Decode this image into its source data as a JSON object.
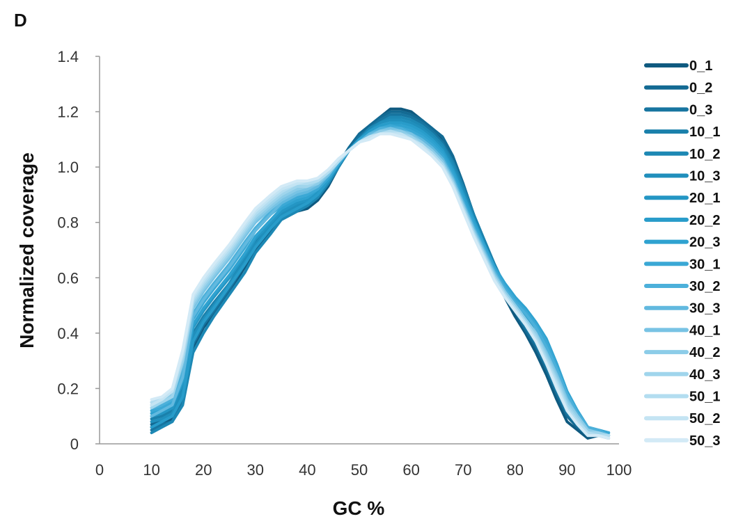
{
  "panel_label": "D",
  "chart_data": {
    "type": "line",
    "xlabel": "GC %",
    "ylabel": "Normalized coverage",
    "xlim": [
      0,
      100
    ],
    "ylim": [
      0,
      1.4
    ],
    "xticks": [
      "0",
      "10",
      "20",
      "30",
      "40",
      "50",
      "60",
      "70",
      "80",
      "90",
      "100"
    ],
    "yticks": [
      "0",
      "0.2",
      "0.4",
      "0.6",
      "0.8",
      "1.0",
      "1.2",
      "1.4"
    ],
    "legend_position": "right",
    "grid": false,
    "x": [
      10,
      12,
      14,
      16,
      18,
      20,
      22,
      25,
      28,
      30,
      33,
      35,
      38,
      40,
      42,
      44,
      46,
      48,
      50,
      52,
      54,
      56,
      58,
      60,
      62,
      64,
      66,
      68,
      70,
      72,
      74,
      76,
      78,
      80,
      82,
      84,
      86,
      88,
      90,
      92,
      94,
      96,
      98
    ],
    "series": [
      {
        "name": "0_1",
        "color": "#0f5a80",
        "values": [
          0.06,
          0.07,
          0.09,
          0.15,
          0.35,
          0.42,
          0.47,
          0.55,
          0.64,
          0.7,
          0.77,
          0.81,
          0.84,
          0.85,
          0.88,
          0.93,
          1.0,
          1.06,
          1.11,
          1.15,
          1.18,
          1.21,
          1.21,
          1.2,
          1.17,
          1.14,
          1.1,
          1.02,
          0.92,
          0.82,
          0.72,
          0.62,
          0.53,
          0.46,
          0.4,
          0.33,
          0.25,
          0.16,
          0.08,
          0.05,
          0.02,
          0.03,
          0.02
        ]
      },
      {
        "name": "0_2",
        "color": "#136a93",
        "values": [
          0.07,
          0.08,
          0.1,
          0.18,
          0.38,
          0.45,
          0.5,
          0.57,
          0.66,
          0.72,
          0.78,
          0.82,
          0.85,
          0.87,
          0.9,
          0.95,
          1.01,
          1.07,
          1.12,
          1.15,
          1.18,
          1.2,
          1.2,
          1.19,
          1.17,
          1.14,
          1.11,
          1.04,
          0.94,
          0.83,
          0.73,
          0.63,
          0.54,
          0.48,
          0.41,
          0.35,
          0.27,
          0.18,
          0.1,
          0.06,
          0.03,
          0.04,
          0.03
        ]
      },
      {
        "name": "0_3",
        "color": "#1775a0",
        "values": [
          0.05,
          0.07,
          0.08,
          0.16,
          0.36,
          0.43,
          0.48,
          0.56,
          0.65,
          0.71,
          0.78,
          0.82,
          0.85,
          0.86,
          0.89,
          0.94,
          1.0,
          1.06,
          1.11,
          1.14,
          1.17,
          1.19,
          1.19,
          1.18,
          1.16,
          1.13,
          1.09,
          1.02,
          0.93,
          0.83,
          0.73,
          0.63,
          0.55,
          0.48,
          0.42,
          0.36,
          0.28,
          0.19,
          0.11,
          0.07,
          0.03,
          0.03,
          0.03
        ]
      },
      {
        "name": "10_1",
        "color": "#1a80ab",
        "values": [
          0.09,
          0.1,
          0.12,
          0.2,
          0.4,
          0.46,
          0.51,
          0.58,
          0.67,
          0.73,
          0.79,
          0.83,
          0.86,
          0.88,
          0.9,
          0.95,
          1.01,
          1.06,
          1.1,
          1.13,
          1.16,
          1.18,
          1.17,
          1.16,
          1.14,
          1.12,
          1.08,
          1.02,
          0.93,
          0.83,
          0.74,
          0.65,
          0.57,
          0.5,
          0.44,
          0.38,
          0.3,
          0.21,
          0.12,
          0.08,
          0.04,
          0.04,
          0.03
        ]
      },
      {
        "name": "10_2",
        "color": "#1d88b4",
        "values": [
          0.04,
          0.06,
          0.08,
          0.14,
          0.33,
          0.4,
          0.46,
          0.54,
          0.62,
          0.69,
          0.76,
          0.81,
          0.84,
          0.86,
          0.89,
          0.94,
          1.0,
          1.06,
          1.1,
          1.14,
          1.16,
          1.18,
          1.18,
          1.17,
          1.15,
          1.12,
          1.08,
          1.01,
          0.92,
          0.82,
          0.73,
          0.64,
          0.56,
          0.5,
          0.45,
          0.4,
          0.33,
          0.24,
          0.14,
          0.09,
          0.04,
          0.03,
          0.04
        ]
      },
      {
        "name": "10_3",
        "color": "#208fbc",
        "values": [
          0.08,
          0.09,
          0.11,
          0.19,
          0.39,
          0.45,
          0.5,
          0.58,
          0.66,
          0.72,
          0.79,
          0.83,
          0.86,
          0.87,
          0.9,
          0.95,
          1.01,
          1.06,
          1.1,
          1.13,
          1.16,
          1.17,
          1.17,
          1.16,
          1.14,
          1.11,
          1.07,
          1.0,
          0.91,
          0.81,
          0.72,
          0.63,
          0.56,
          0.5,
          0.44,
          0.38,
          0.31,
          0.22,
          0.13,
          0.08,
          0.04,
          0.04,
          0.03
        ]
      },
      {
        "name": "20_1",
        "color": "#2496c4",
        "values": [
          0.1,
          0.11,
          0.13,
          0.22,
          0.42,
          0.48,
          0.53,
          0.6,
          0.68,
          0.74,
          0.8,
          0.84,
          0.87,
          0.88,
          0.91,
          0.95,
          1.01,
          1.06,
          1.1,
          1.13,
          1.15,
          1.16,
          1.16,
          1.15,
          1.13,
          1.1,
          1.06,
          0.99,
          0.9,
          0.81,
          0.72,
          0.64,
          0.57,
          0.51,
          0.46,
          0.4,
          0.33,
          0.24,
          0.15,
          0.09,
          0.05,
          0.04,
          0.04
        ]
      },
      {
        "name": "20_2",
        "color": "#289cca",
        "values": [
          0.06,
          0.08,
          0.1,
          0.17,
          0.37,
          0.44,
          0.49,
          0.57,
          0.65,
          0.71,
          0.78,
          0.82,
          0.85,
          0.87,
          0.9,
          0.95,
          1.01,
          1.06,
          1.1,
          1.13,
          1.15,
          1.16,
          1.16,
          1.15,
          1.13,
          1.1,
          1.06,
          0.99,
          0.9,
          0.81,
          0.72,
          0.64,
          0.58,
          0.53,
          0.48,
          0.43,
          0.36,
          0.27,
          0.17,
          0.11,
          0.05,
          0.05,
          0.04
        ]
      },
      {
        "name": "20_3",
        "color": "#2fa2d0",
        "values": [
          0.11,
          0.12,
          0.14,
          0.23,
          0.43,
          0.49,
          0.54,
          0.61,
          0.69,
          0.75,
          0.81,
          0.85,
          0.88,
          0.89,
          0.92,
          0.96,
          1.01,
          1.06,
          1.1,
          1.12,
          1.14,
          1.15,
          1.15,
          1.14,
          1.12,
          1.09,
          1.05,
          0.98,
          0.89,
          0.8,
          0.72,
          0.64,
          0.58,
          0.53,
          0.49,
          0.44,
          0.38,
          0.29,
          0.19,
          0.12,
          0.06,
          0.05,
          0.04
        ]
      },
      {
        "name": "30_1",
        "color": "#3ba8d5",
        "values": [
          0.12,
          0.13,
          0.15,
          0.25,
          0.45,
          0.51,
          0.56,
          0.63,
          0.71,
          0.77,
          0.83,
          0.86,
          0.89,
          0.9,
          0.92,
          0.96,
          1.01,
          1.06,
          1.09,
          1.12,
          1.14,
          1.15,
          1.14,
          1.13,
          1.11,
          1.08,
          1.04,
          0.97,
          0.88,
          0.79,
          0.71,
          0.63,
          0.57,
          0.52,
          0.48,
          0.43,
          0.37,
          0.28,
          0.18,
          0.12,
          0.06,
          0.05,
          0.04
        ]
      },
      {
        "name": "30_2",
        "color": "#4cb0da",
        "values": [
          0.13,
          0.14,
          0.16,
          0.27,
          0.47,
          0.53,
          0.58,
          0.65,
          0.73,
          0.78,
          0.84,
          0.87,
          0.9,
          0.91,
          0.93,
          0.97,
          1.02,
          1.06,
          1.09,
          1.12,
          1.14,
          1.14,
          1.14,
          1.12,
          1.1,
          1.07,
          1.03,
          0.96,
          0.87,
          0.78,
          0.7,
          0.62,
          0.56,
          0.51,
          0.47,
          0.42,
          0.35,
          0.27,
          0.18,
          0.11,
          0.06,
          0.05,
          0.03
        ]
      },
      {
        "name": "30_3",
        "color": "#62b9df",
        "values": [
          0.1,
          0.12,
          0.14,
          0.24,
          0.46,
          0.52,
          0.57,
          0.64,
          0.72,
          0.77,
          0.83,
          0.87,
          0.9,
          0.91,
          0.93,
          0.97,
          1.02,
          1.06,
          1.09,
          1.12,
          1.13,
          1.14,
          1.13,
          1.12,
          1.1,
          1.07,
          1.03,
          0.96,
          0.87,
          0.78,
          0.7,
          0.62,
          0.55,
          0.5,
          0.45,
          0.4,
          0.33,
          0.25,
          0.16,
          0.1,
          0.05,
          0.04,
          0.03
        ]
      },
      {
        "name": "40_1",
        "color": "#78c3e4",
        "values": [
          0.14,
          0.15,
          0.17,
          0.29,
          0.49,
          0.55,
          0.6,
          0.67,
          0.75,
          0.8,
          0.85,
          0.88,
          0.91,
          0.92,
          0.94,
          0.97,
          1.02,
          1.06,
          1.09,
          1.11,
          1.13,
          1.14,
          1.13,
          1.12,
          1.09,
          1.06,
          1.02,
          0.95,
          0.86,
          0.77,
          0.69,
          0.61,
          0.55,
          0.5,
          0.45,
          0.4,
          0.33,
          0.25,
          0.16,
          0.1,
          0.05,
          0.04,
          0.03
        ]
      },
      {
        "name": "40_2",
        "color": "#8ccce8",
        "values": [
          0.15,
          0.16,
          0.18,
          0.3,
          0.5,
          0.56,
          0.61,
          0.68,
          0.76,
          0.81,
          0.86,
          0.89,
          0.92,
          0.93,
          0.94,
          0.98,
          1.02,
          1.06,
          1.09,
          1.11,
          1.13,
          1.13,
          1.13,
          1.11,
          1.09,
          1.06,
          1.02,
          0.95,
          0.86,
          0.77,
          0.69,
          0.61,
          0.55,
          0.5,
          0.45,
          0.4,
          0.32,
          0.24,
          0.15,
          0.1,
          0.05,
          0.04,
          0.03
        ]
      },
      {
        "name": "40_3",
        "color": "#a0d5ec",
        "values": [
          0.13,
          0.15,
          0.17,
          0.3,
          0.51,
          0.57,
          0.62,
          0.69,
          0.77,
          0.82,
          0.87,
          0.9,
          0.93,
          0.93,
          0.95,
          0.98,
          1.02,
          1.06,
          1.09,
          1.11,
          1.12,
          1.13,
          1.12,
          1.11,
          1.08,
          1.05,
          1.01,
          0.94,
          0.85,
          0.76,
          0.68,
          0.6,
          0.54,
          0.49,
          0.44,
          0.39,
          0.31,
          0.23,
          0.14,
          0.09,
          0.04,
          0.04,
          0.03
        ]
      },
      {
        "name": "50_1",
        "color": "#b3ddf0",
        "values": [
          0.15,
          0.16,
          0.19,
          0.32,
          0.52,
          0.58,
          0.63,
          0.7,
          0.78,
          0.83,
          0.88,
          0.91,
          0.94,
          0.94,
          0.95,
          0.98,
          1.02,
          1.06,
          1.09,
          1.11,
          1.12,
          1.13,
          1.12,
          1.1,
          1.08,
          1.05,
          1.01,
          0.94,
          0.85,
          0.76,
          0.68,
          0.6,
          0.54,
          0.49,
          0.44,
          0.38,
          0.3,
          0.22,
          0.13,
          0.08,
          0.04,
          0.03,
          0.03
        ]
      },
      {
        "name": "50_2",
        "color": "#c4e4f3",
        "values": [
          0.14,
          0.16,
          0.19,
          0.33,
          0.53,
          0.59,
          0.64,
          0.71,
          0.79,
          0.84,
          0.89,
          0.92,
          0.94,
          0.95,
          0.96,
          0.99,
          1.03,
          1.06,
          1.09,
          1.11,
          1.12,
          1.12,
          1.12,
          1.1,
          1.08,
          1.04,
          1.0,
          0.93,
          0.84,
          0.75,
          0.67,
          0.59,
          0.53,
          0.48,
          0.43,
          0.37,
          0.29,
          0.21,
          0.12,
          0.07,
          0.03,
          0.03,
          0.02
        ]
      },
      {
        "name": "50_3",
        "color": "#d3eaf6",
        "values": [
          0.16,
          0.17,
          0.2,
          0.34,
          0.54,
          0.6,
          0.65,
          0.72,
          0.8,
          0.85,
          0.9,
          0.93,
          0.95,
          0.95,
          0.96,
          0.99,
          1.03,
          1.06,
          1.09,
          1.1,
          1.12,
          1.12,
          1.11,
          1.1,
          1.07,
          1.04,
          1.0,
          0.93,
          0.84,
          0.75,
          0.67,
          0.59,
          0.53,
          0.48,
          0.43,
          0.37,
          0.29,
          0.2,
          0.12,
          0.07,
          0.03,
          0.03,
          0.02
        ]
      }
    ]
  }
}
